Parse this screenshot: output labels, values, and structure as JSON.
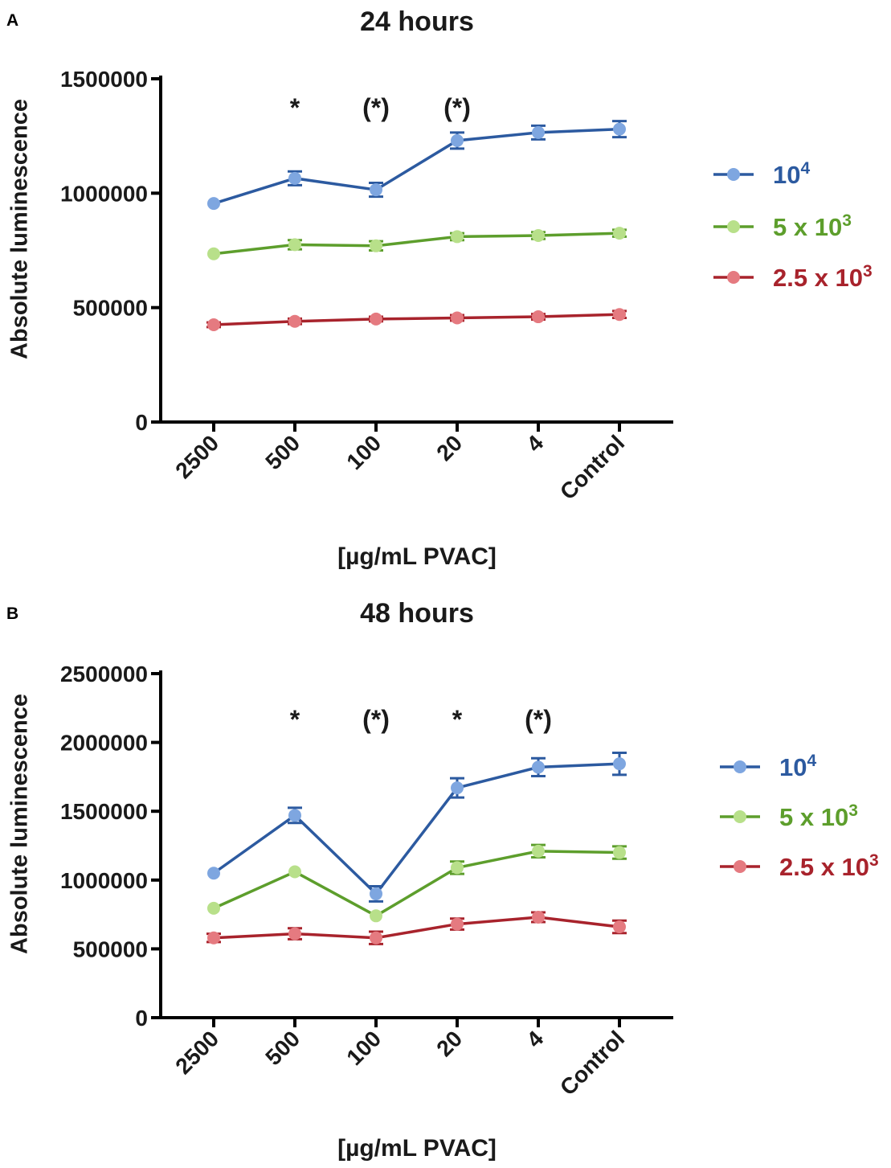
{
  "chart_data": [
    {
      "panel_label": "A",
      "type": "line",
      "title": "24 hours",
      "xlabel": "[µg/mL PVAC]",
      "ylabel": "Absolute luminescence",
      "categories": [
        "2500",
        "500",
        "100",
        "20",
        "4",
        "Control"
      ],
      "ylim": [
        0,
        1500000
      ],
      "yticks": [
        "0",
        "500000",
        "1000000",
        "1500000"
      ],
      "ytick_values": [
        0,
        500000,
        1000000,
        1500000
      ],
      "grid": false,
      "legend_position": "right",
      "significance_markers": [
        "",
        "*",
        "(*)",
        "(*)",
        "",
        ""
      ],
      "series": [
        {
          "name": "10",
          "name_sup": "4",
          "color": "#2c5aa0",
          "marker_color": "#7ea6e0",
          "values": [
            955000,
            1065000,
            1015000,
            1230000,
            1265000,
            1280000
          ],
          "errors": [
            0,
            30000,
            30000,
            35000,
            30000,
            35000
          ]
        },
        {
          "name": "5 x 10",
          "name_sup": "3",
          "color": "#5d9e2c",
          "marker_color": "#b8e08a",
          "values": [
            735000,
            775000,
            770000,
            810000,
            815000,
            825000
          ],
          "errors": [
            0,
            20000,
            20000,
            15000,
            15000,
            15000
          ]
        },
        {
          "name": "2.5 x 10",
          "name_sup": "3",
          "color": "#a8232c",
          "marker_color": "#e57a80",
          "values": [
            425000,
            440000,
            450000,
            455000,
            460000,
            470000
          ],
          "errors": [
            10000,
            12000,
            10000,
            12000,
            12000,
            15000
          ]
        }
      ]
    },
    {
      "panel_label": "B",
      "type": "line",
      "title": "48 hours",
      "xlabel": "[µg/mL PVAC]",
      "ylabel": "Absolute luminescence",
      "categories": [
        "2500",
        "500",
        "100",
        "20",
        "4",
        "Control"
      ],
      "ylim": [
        0,
        2500000
      ],
      "yticks": [
        "0",
        "500000",
        "1000000",
        "1500000",
        "2000000",
        "2500000"
      ],
      "ytick_values": [
        0,
        500000,
        1000000,
        1500000,
        2000000,
        2500000
      ],
      "grid": false,
      "legend_position": "right",
      "significance_markers": [
        "",
        "*",
        "(*)",
        "*",
        "(*)",
        ""
      ],
      "series": [
        {
          "name": "10",
          "name_sup": "4",
          "color": "#2c5aa0",
          "marker_color": "#7ea6e0",
          "values": [
            1050000,
            1470000,
            900000,
            1670000,
            1820000,
            1845000
          ],
          "errors": [
            0,
            55000,
            55000,
            70000,
            65000,
            80000
          ]
        },
        {
          "name": "5 x 10",
          "name_sup": "3",
          "color": "#5d9e2c",
          "marker_color": "#b8e08a",
          "values": [
            795000,
            1060000,
            740000,
            1090000,
            1210000,
            1200000
          ],
          "errors": [
            0,
            0,
            0,
            45000,
            45000,
            45000
          ]
        },
        {
          "name": "2.5 x 10",
          "name_sup": "3",
          "color": "#a8232c",
          "marker_color": "#e57a80",
          "values": [
            580000,
            610000,
            580000,
            680000,
            730000,
            660000
          ],
          "errors": [
            30000,
            40000,
            45000,
            40000,
            35000,
            45000
          ]
        }
      ]
    }
  ]
}
